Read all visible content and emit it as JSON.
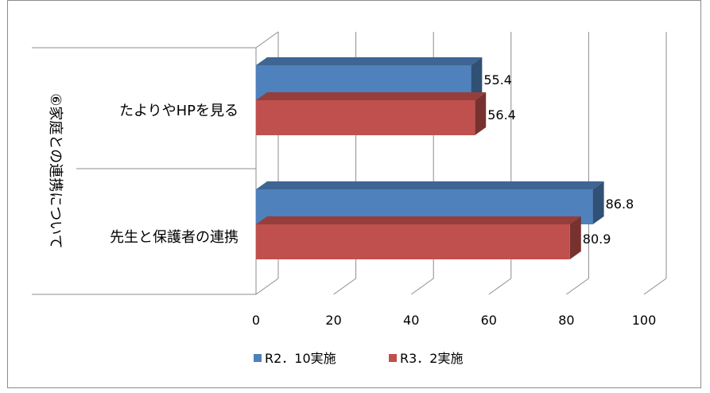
{
  "chart_data": {
    "type": "bar",
    "orientation": "horizontal",
    "three_d": true,
    "group_label": "⑥家庭との連携について",
    "categories": [
      "たよりやHPを見る",
      "先生と保護者の連携"
    ],
    "series": [
      {
        "name": "R2．10実施",
        "values": [
          55.4,
          86.8
        ],
        "color": "#4f81bd"
      },
      {
        "name": "R3．2実施",
        "values": [
          56.4,
          80.9
        ],
        "color": "#c0504d"
      }
    ],
    "value_labels": [
      [
        "55.4",
        "86.8"
      ],
      [
        "56.4",
        "80.9"
      ]
    ],
    "xlim": [
      0,
      100
    ],
    "xticks": [
      0,
      20,
      40,
      60,
      80,
      100
    ],
    "xtick_labels": [
      "0",
      "20",
      "40",
      "60",
      "80",
      "100"
    ],
    "grid": true,
    "legend_position": "bottom"
  }
}
